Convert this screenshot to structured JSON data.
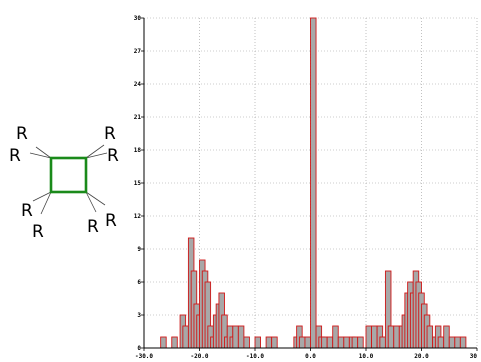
{
  "molecule": {
    "labels": [
      "R",
      "R",
      "R",
      "R",
      "R",
      "R",
      "R",
      "R"
    ],
    "ring_color": "#1a8a1a"
  },
  "chart_data": {
    "type": "bar",
    "xlim": [
      -30,
      30
    ],
    "ylim": [
      0,
      30
    ],
    "bin_width": 1,
    "x_ticks": [
      -30,
      -20,
      -10,
      0,
      10,
      20,
      30
    ],
    "x_tick_labels": [
      "-30.0",
      "-20.0",
      "-10.0",
      "0.0",
      "10.0",
      "20.0",
      "30"
    ],
    "y_ticks": [
      0,
      3,
      6,
      9,
      12,
      15,
      18,
      21,
      24,
      27,
      30
    ],
    "y_tick_labels": [
      "0",
      "3",
      "6",
      "9",
      "12",
      "15",
      "18",
      "21",
      "24",
      "27",
      "30"
    ],
    "grid": true,
    "bar_fill": "#a8a8a8",
    "bar_edge": "#d01818",
    "bins": [
      {
        "x": -27,
        "y": 1
      },
      {
        "x": -25,
        "y": 1
      },
      {
        "x": -23.5,
        "y": 3
      },
      {
        "x": -23,
        "y": 2
      },
      {
        "x": -22,
        "y": 10
      },
      {
        "x": -21.5,
        "y": 7
      },
      {
        "x": -21,
        "y": 4
      },
      {
        "x": -20.5,
        "y": 3
      },
      {
        "x": -20,
        "y": 8
      },
      {
        "x": -19.5,
        "y": 7
      },
      {
        "x": -19,
        "y": 6
      },
      {
        "x": -18.5,
        "y": 2
      },
      {
        "x": -18,
        "y": 1
      },
      {
        "x": -17.5,
        "y": 3
      },
      {
        "x": -17,
        "y": 4
      },
      {
        "x": -16.5,
        "y": 5
      },
      {
        "x": -16,
        "y": 3
      },
      {
        "x": -15.5,
        "y": 1
      },
      {
        "x": -15,
        "y": 2
      },
      {
        "x": -14.5,
        "y": 1
      },
      {
        "x": -14,
        "y": 2
      },
      {
        "x": -13,
        "y": 2
      },
      {
        "x": -12,
        "y": 1
      },
      {
        "x": -10,
        "y": 1
      },
      {
        "x": -8,
        "y": 1
      },
      {
        "x": -7,
        "y": 1
      },
      {
        "x": -3,
        "y": 1
      },
      {
        "x": -2.5,
        "y": 2
      },
      {
        "x": -2,
        "y": 1
      },
      {
        "x": -1,
        "y": 1
      },
      {
        "x": 0,
        "y": 30
      },
      {
        "x": 1,
        "y": 2
      },
      {
        "x": 1.5,
        "y": 1
      },
      {
        "x": 2,
        "y": 1
      },
      {
        "x": 3,
        "y": 1
      },
      {
        "x": 4,
        "y": 2
      },
      {
        "x": 5,
        "y": 1
      },
      {
        "x": 6,
        "y": 1
      },
      {
        "x": 7,
        "y": 1
      },
      {
        "x": 7.5,
        "y": 1
      },
      {
        "x": 8.5,
        "y": 1
      },
      {
        "x": 10,
        "y": 2
      },
      {
        "x": 11,
        "y": 2
      },
      {
        "x": 12,
        "y": 2
      },
      {
        "x": 12.5,
        "y": 1
      },
      {
        "x": 13.5,
        "y": 7
      },
      {
        "x": 14,
        "y": 2
      },
      {
        "x": 15,
        "y": 2
      },
      {
        "x": 16,
        "y": 2
      },
      {
        "x": 16.5,
        "y": 3
      },
      {
        "x": 17,
        "y": 5
      },
      {
        "x": 17.5,
        "y": 6
      },
      {
        "x": 18,
        "y": 5
      },
      {
        "x": 18.5,
        "y": 7
      },
      {
        "x": 19,
        "y": 6
      },
      {
        "x": 19.5,
        "y": 5
      },
      {
        "x": 20,
        "y": 4
      },
      {
        "x": 20.5,
        "y": 3
      },
      {
        "x": 21,
        "y": 2
      },
      {
        "x": 22,
        "y": 1
      },
      {
        "x": 22.5,
        "y": 2
      },
      {
        "x": 23,
        "y": 1
      },
      {
        "x": 24,
        "y": 2
      },
      {
        "x": 25,
        "y": 1
      },
      {
        "x": 26,
        "y": 1
      },
      {
        "x": 27,
        "y": 1
      }
    ]
  }
}
